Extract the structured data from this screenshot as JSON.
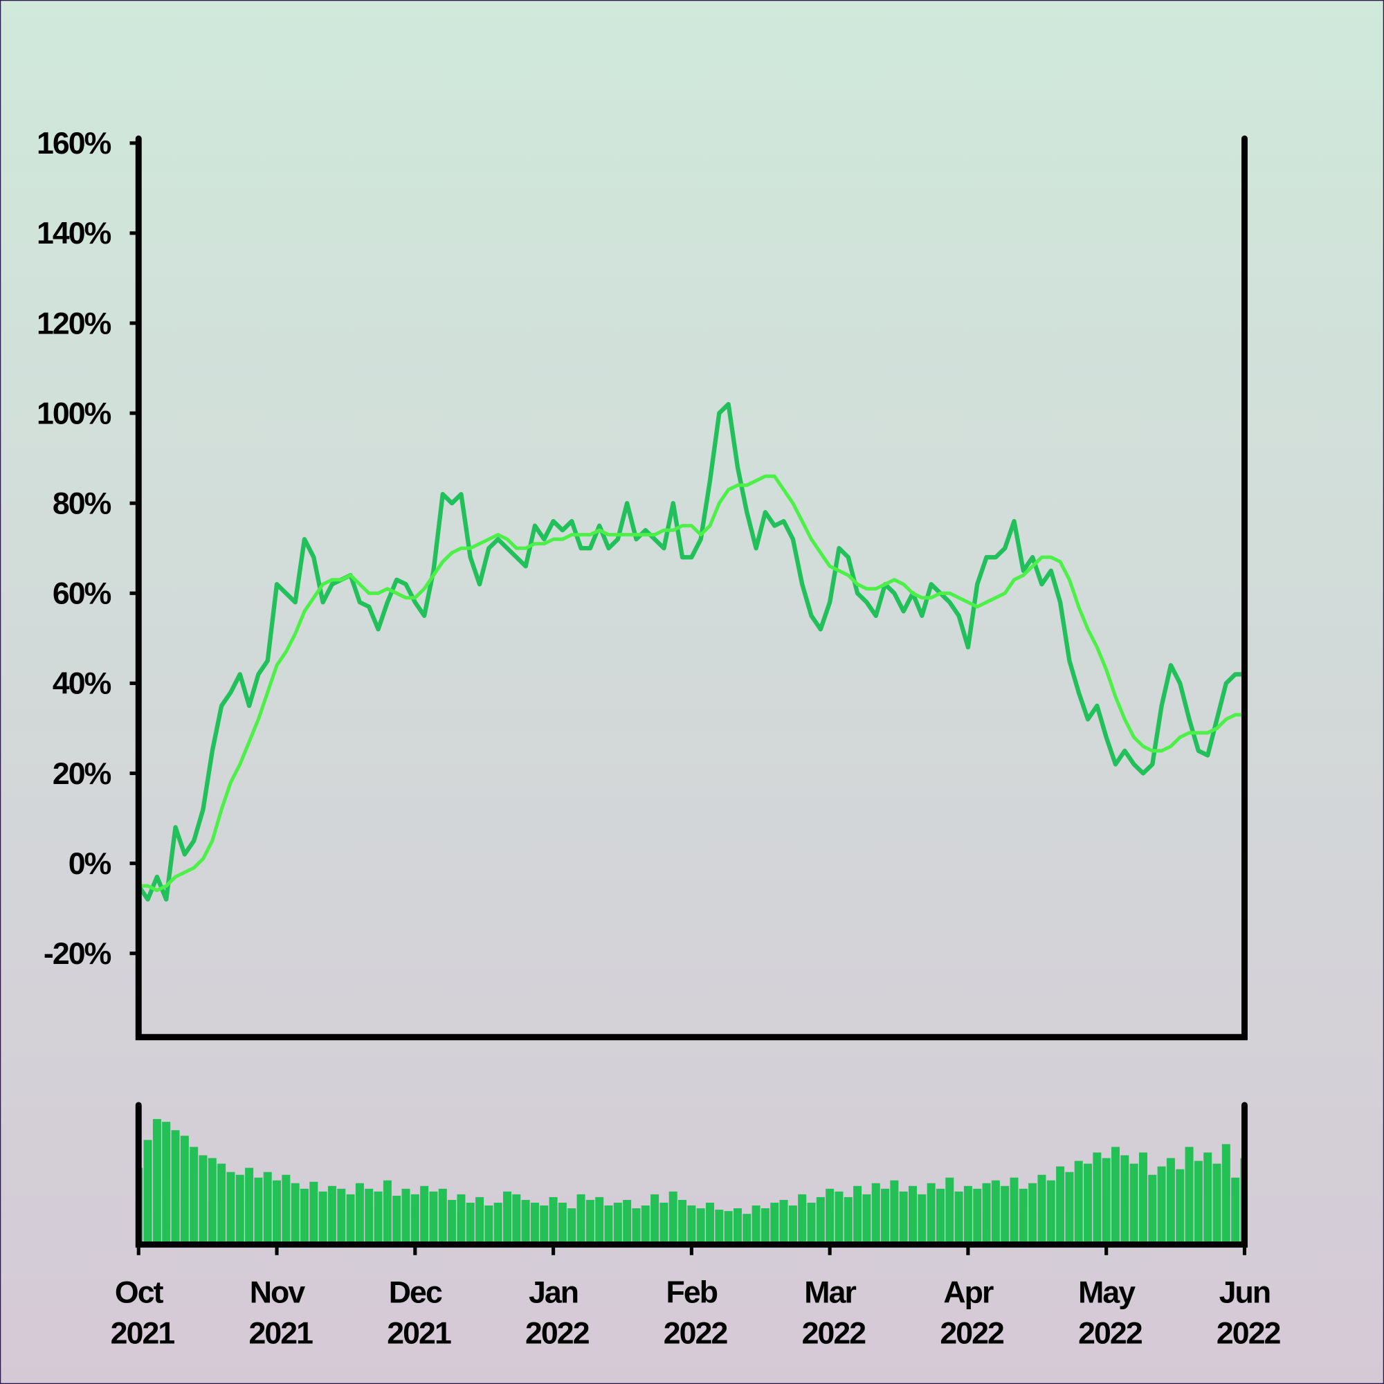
{
  "chart_data": [
    {
      "type": "line",
      "xlim": [
        0,
        120
      ],
      "ylim": [
        -38.6,
        161
      ],
      "yticks": [
        {
          "value": 160,
          "label": "160%"
        },
        {
          "value": 140,
          "label": "140%"
        },
        {
          "value": 120,
          "label": "120%"
        },
        {
          "value": 100,
          "label": "100%"
        },
        {
          "value": 80,
          "label": "80%"
        },
        {
          "value": 60,
          "label": "60%"
        },
        {
          "value": 40,
          "label": "40%"
        },
        {
          "value": 20,
          "label": "20%"
        },
        {
          "value": 0,
          "label": "0%"
        },
        {
          "value": -20,
          "label": "-20%"
        }
      ],
      "series": [
        {
          "color": "#22c05a",
          "values": [
            -5,
            -8,
            -3,
            -8,
            8,
            2,
            5,
            12,
            25,
            35,
            38,
            42,
            35,
            42,
            45,
            62,
            60,
            58,
            72,
            68,
            58,
            62,
            63,
            64,
            58,
            57,
            52,
            58,
            63,
            62,
            58,
            55,
            65,
            82,
            80,
            82,
            68,
            62,
            70,
            72,
            70,
            68,
            66,
            75,
            72,
            76,
            74,
            76,
            70,
            70,
            75,
            70,
            72,
            80,
            72,
            74,
            72,
            70,
            80,
            68,
            68,
            72,
            85,
            100,
            102,
            88,
            78,
            70,
            78,
            75,
            76,
            72,
            62,
            55,
            52,
            58,
            70,
            68,
            60,
            58,
            55,
            62,
            60,
            56,
            60,
            55,
            62,
            60,
            58,
            55,
            48,
            62,
            68,
            68,
            70,
            76,
            65,
            68,
            62,
            65,
            58,
            45,
            38,
            32,
            35,
            28,
            22,
            25,
            22,
            20,
            22,
            35,
            44,
            40,
            32,
            25,
            24,
            32,
            40,
            42,
            42
          ]
        },
        {
          "color": "#4df048",
          "values": [
            -5,
            -5,
            -6,
            -5,
            -3,
            -2,
            -1,
            1,
            5,
            12,
            18,
            22,
            27,
            32,
            38,
            44,
            47,
            51,
            56,
            59,
            62,
            63,
            63,
            64,
            62,
            60,
            60,
            61,
            60,
            59,
            59,
            61,
            64,
            67,
            69,
            70,
            70,
            71,
            72,
            73,
            72,
            70,
            70,
            71,
            71,
            72,
            72,
            73,
            73,
            73,
            74,
            73,
            73,
            73,
            73,
            73,
            73,
            74,
            74,
            75,
            75,
            73,
            75,
            80,
            83,
            84,
            84,
            85,
            86,
            86,
            83,
            80,
            76,
            72,
            69,
            66,
            65,
            64,
            62,
            61,
            61,
            62,
            63,
            62,
            60,
            59,
            59,
            60,
            60,
            59,
            58,
            57,
            58,
            59,
            60,
            63,
            64,
            66,
            68,
            68,
            67,
            63,
            57,
            52,
            48,
            43,
            37,
            32,
            28,
            26,
            25,
            25,
            26,
            28,
            29,
            29,
            29,
            30,
            32,
            33,
            33
          ]
        }
      ]
    },
    {
      "type": "bar",
      "color": "#22c055",
      "xlim": [
        0,
        120
      ],
      "ylim": [
        0,
        100
      ],
      "xticks": [
        {
          "value": 0,
          "label": "Oct 2021"
        },
        {
          "value": 15,
          "label": "Nov 2021"
        },
        {
          "value": 30,
          "label": "Dec 2021"
        },
        {
          "value": 45,
          "label": "Jan 2022"
        },
        {
          "value": 60,
          "label": "Feb 2022"
        },
        {
          "value": 75,
          "label": "Mar 2022"
        },
        {
          "value": 90,
          "label": "Apr 2022"
        },
        {
          "value": 105,
          "label": "May 2022"
        },
        {
          "value": 120,
          "label": "Jun 2022"
        }
      ],
      "values": [
        55,
        75,
        90,
        88,
        82,
        78,
        70,
        64,
        62,
        58,
        52,
        50,
        55,
        48,
        52,
        46,
        50,
        44,
        40,
        45,
        38,
        42,
        40,
        36,
        44,
        40,
        38,
        46,
        35,
        40,
        36,
        42,
        38,
        40,
        32,
        36,
        30,
        34,
        28,
        30,
        38,
        36,
        32,
        30,
        28,
        34,
        30,
        26,
        36,
        32,
        34,
        28,
        30,
        32,
        26,
        28,
        36,
        30,
        38,
        32,
        28,
        26,
        30,
        25,
        24,
        26,
        22,
        28,
        26,
        30,
        32,
        28,
        36,
        30,
        34,
        40,
        38,
        34,
        42,
        36,
        44,
        40,
        46,
        38,
        42,
        36,
        44,
        40,
        48,
        38,
        42,
        40,
        44,
        46,
        42,
        48,
        40,
        44,
        50,
        46,
        56,
        52,
        60,
        58,
        66,
        62,
        70,
        64,
        58,
        66,
        50,
        56,
        62,
        54,
        70,
        60,
        66,
        58,
        72,
        48,
        62
      ]
    }
  ]
}
